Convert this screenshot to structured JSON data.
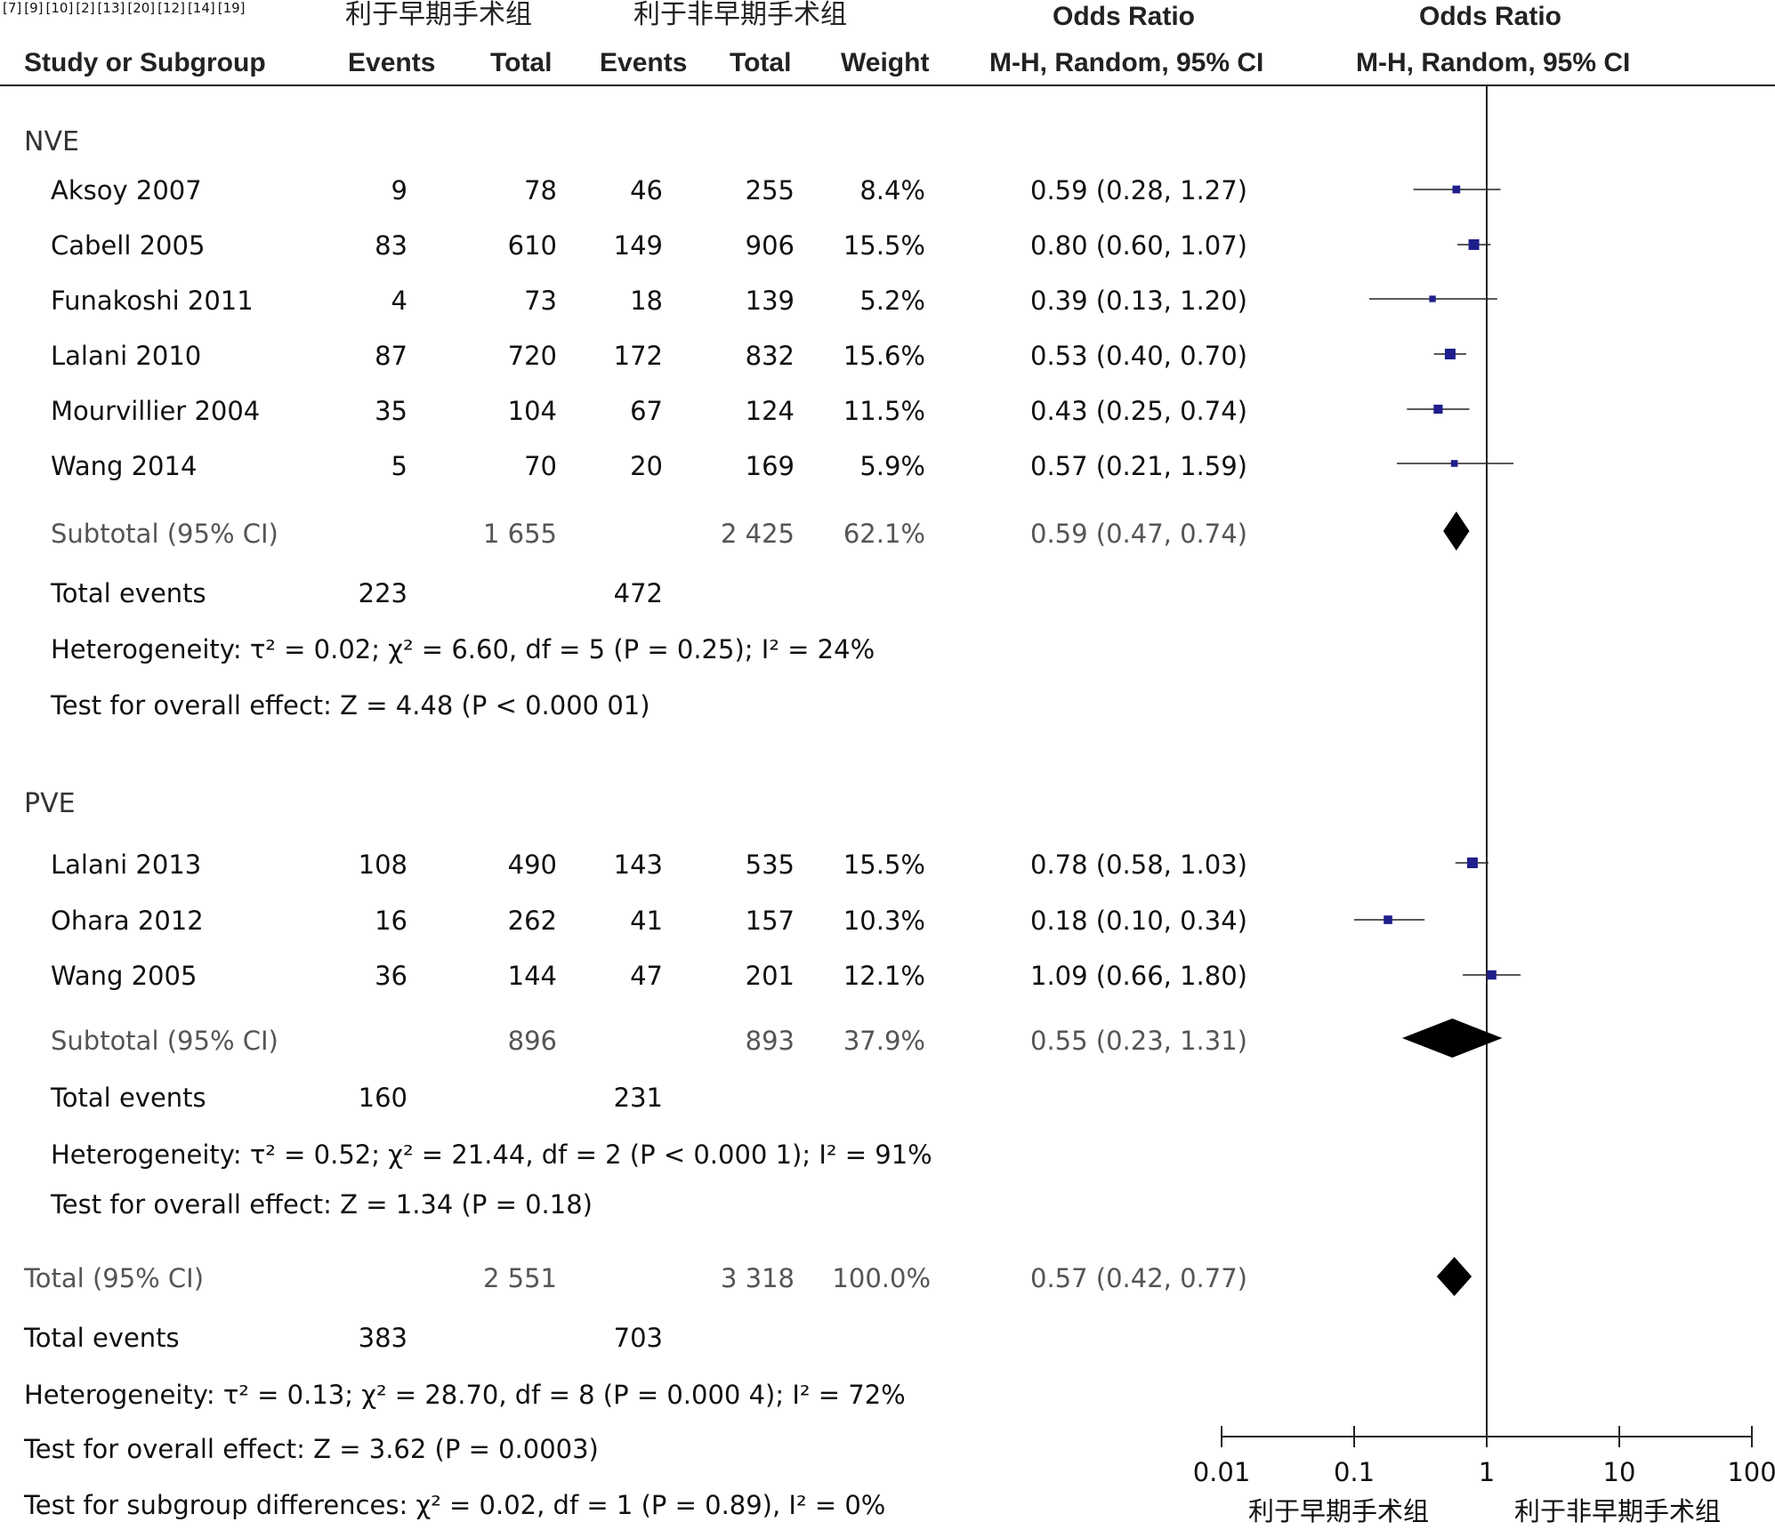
{
  "header": {
    "group_a": "利于早期手术组",
    "group_b": "利于非早期手术组",
    "or_title": "Odds Ratio",
    "or_title_plot": "Odds Ratio",
    "col_study": "Study or Subgroup",
    "col_events_a": "Events",
    "col_total_a": "Total",
    "col_events_b": "Events",
    "col_total_b": "Total",
    "col_weight": "Weight",
    "col_method": "M-H, Random, 95% CI",
    "col_method_plot": "M-H, Random, 95% CI"
  },
  "subgroups": [
    {
      "name": "NVE",
      "studies": [
        {
          "label": "Aksoy 2007",
          "ref": "[7]",
          "ev_a": "9",
          "tot_a": "78",
          "ev_b": "46",
          "tot_b": "255",
          "weight": "8.4%",
          "ci_text": "0.59 (0.28, 1.27)"
        },
        {
          "label": "Cabell 2005",
          "ref": "[9]",
          "ev_a": "83",
          "tot_a": "610",
          "ev_b": "149",
          "tot_b": "906",
          "weight": "15.5%",
          "ci_text": "0.80 (0.60, 1.07)"
        },
        {
          "label": "Funakoshi 2011",
          "ref": "[10]",
          "ev_a": "4",
          "tot_a": "73",
          "ev_b": "18",
          "tot_b": "139",
          "weight": "5.2%",
          "ci_text": "0.39 (0.13, 1.20)"
        },
        {
          "label": "Lalani 2010",
          "ref": "[2]",
          "ev_a": "87",
          "tot_a": "720",
          "ev_b": "172",
          "tot_b": "832",
          "weight": "15.6%",
          "ci_text": "0.53 (0.40, 0.70)"
        },
        {
          "label": "Mourvillier 2004",
          "ref": "[13]",
          "ev_a": "35",
          "tot_a": "104",
          "ev_b": "67",
          "tot_b": "124",
          "weight": "11.5%",
          "ci_text": "0.43 (0.25, 0.74)"
        },
        {
          "label": "Wang 2014",
          "ref": "[20]",
          "ev_a": "5",
          "tot_a": "70",
          "ev_b": "20",
          "tot_b": "169",
          "weight": "5.9%",
          "ci_text": "0.57 (0.21, 1.59)"
        }
      ],
      "subtotal": {
        "label": "Subtotal (95% CI)",
        "tot_a": "1 655",
        "tot_b": "2 425",
        "weight": "62.1%",
        "ci_text": "0.59 (0.47, 0.74)"
      },
      "events": {
        "label": "Total events",
        "ev_a": "223",
        "ev_b": "472"
      },
      "heterogeneity": "Heterogeneity: τ² = 0.02; χ² = 6.60, df = 5 (P = 0.25); I² = 24%",
      "overall": "Test for overall effect: Z = 4.48 (P < 0.000 01)"
    },
    {
      "name": "PVE",
      "studies": [
        {
          "label": "Lalani 2013",
          "ref": "[12]",
          "ev_a": "108",
          "tot_a": "490",
          "ev_b": "143",
          "tot_b": "535",
          "weight": "15.5%",
          "ci_text": "0.78 (0.58, 1.03)"
        },
        {
          "label": "Ohara 2012",
          "ref": "[14]",
          "ev_a": "16",
          "tot_a": "262",
          "ev_b": "41",
          "tot_b": "157",
          "weight": "10.3%",
          "ci_text": "0.18 (0.10, 0.34)"
        },
        {
          "label": "Wang 2005",
          "ref": "[19]",
          "ev_a": "36",
          "tot_a": "144",
          "ev_b": "47",
          "tot_b": "201",
          "weight": "12.1%",
          "ci_text": "1.09 (0.66, 1.80)"
        }
      ],
      "subtotal": {
        "label": "Subtotal (95% CI)",
        "tot_a": "896",
        "tot_b": "893",
        "weight": "37.9%",
        "ci_text": "0.55 (0.23, 1.31)"
      },
      "events": {
        "label": "Total events",
        "ev_a": "160",
        "ev_b": "231"
      },
      "heterogeneity": "Heterogeneity: τ² = 0.52; χ² = 21.44, df = 2 (P < 0.000 1); I² = 91%",
      "overall": "Test for overall effect: Z = 1.34 (P = 0.18)"
    }
  ],
  "total": {
    "label": "Total (95% CI)",
    "tot_a": "2 551",
    "tot_b": "3 318",
    "weight": "100.0%",
    "ci_text": "0.57 (0.42, 0.77)"
  },
  "total_events": {
    "label": "Total events",
    "ev_a": "383",
    "ev_b": "703"
  },
  "total_heterogeneity": "Heterogeneity: τ² = 0.13; χ² = 28.70, df = 8 (P = 0.000 4); I² = 72%",
  "total_overall": "Test for overall effect: Z = 3.62 (P = 0.0003)",
  "subgroup_diff": "Test for subgroup differences: χ² = 0.02, df = 1 (P = 0.89), I² = 0%",
  "axis": {
    "favours_left": "利于早期手术组",
    "favours_right": "利于非早期手术组"
  },
  "chart_data": {
    "type": "forest",
    "scale": "log",
    "xlim": [
      0.01,
      100
    ],
    "ticks": [
      0.01,
      0.1,
      1,
      10,
      100
    ],
    "tick_labels": [
      "0.01",
      "0.1",
      "1",
      "10",
      "100"
    ],
    "null_line": 1,
    "colors": {
      "study_marker": "#1f1f8c",
      "summary": "#000000",
      "line": "#222222"
    },
    "studies": [
      {
        "label": "Aksoy 2007",
        "or": 0.59,
        "lo": 0.28,
        "hi": 1.27,
        "weight": 8.4
      },
      {
        "label": "Cabell 2005",
        "or": 0.8,
        "lo": 0.6,
        "hi": 1.07,
        "weight": 15.5
      },
      {
        "label": "Funakoshi 2011",
        "or": 0.39,
        "lo": 0.13,
        "hi": 1.2,
        "weight": 5.2
      },
      {
        "label": "Lalani 2010",
        "or": 0.53,
        "lo": 0.4,
        "hi": 0.7,
        "weight": 15.6
      },
      {
        "label": "Mourvillier 2004",
        "or": 0.43,
        "lo": 0.25,
        "hi": 0.74,
        "weight": 11.5
      },
      {
        "label": "Wang 2014",
        "or": 0.57,
        "lo": 0.21,
        "hi": 1.59,
        "weight": 5.9
      },
      {
        "label": "Lalani 2013",
        "or": 0.78,
        "lo": 0.58,
        "hi": 1.03,
        "weight": 15.5
      },
      {
        "label": "Ohara 2012",
        "or": 0.18,
        "lo": 0.1,
        "hi": 0.34,
        "weight": 10.3
      },
      {
        "label": "Wang 2005",
        "or": 1.09,
        "lo": 0.66,
        "hi": 1.8,
        "weight": 12.1
      }
    ],
    "summaries": [
      {
        "label": "Subtotal NVE",
        "or": 0.59,
        "lo": 0.47,
        "hi": 0.74
      },
      {
        "label": "Subtotal PVE",
        "or": 0.55,
        "lo": 0.23,
        "hi": 1.31
      },
      {
        "label": "Total",
        "or": 0.57,
        "lo": 0.42,
        "hi": 0.77
      }
    ]
  }
}
